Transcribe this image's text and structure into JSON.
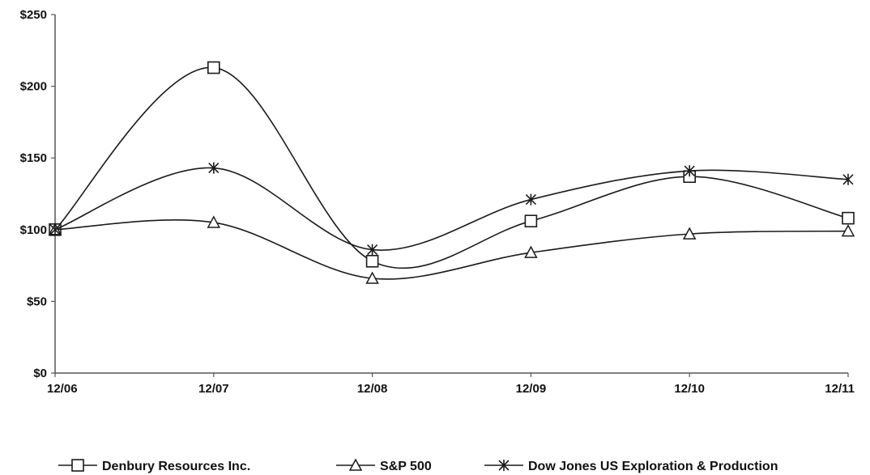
{
  "chart_data": {
    "type": "line",
    "title": "",
    "xlabel": "",
    "ylabel": "",
    "categories": [
      "12/06",
      "12/07",
      "12/08",
      "12/09",
      "12/10",
      "12/11"
    ],
    "y_ticks": [
      "$0",
      "$50",
      "$100",
      "$150",
      "$200",
      "$250"
    ],
    "ylim": [
      0,
      250
    ],
    "grid": false,
    "legend_position": "bottom",
    "line_color": "#1a1a1a",
    "series": [
      {
        "name": "Denbury Resources Inc.",
        "marker": "square",
        "values": [
          100,
          213,
          78,
          106,
          137,
          108
        ]
      },
      {
        "name": "S&P 500",
        "marker": "triangle",
        "values": [
          100,
          105,
          66,
          84,
          97,
          99
        ]
      },
      {
        "name": "Dow Jones US Exploration & Production",
        "marker": "star",
        "values": [
          100,
          143,
          86,
          121,
          141,
          135
        ]
      }
    ]
  }
}
